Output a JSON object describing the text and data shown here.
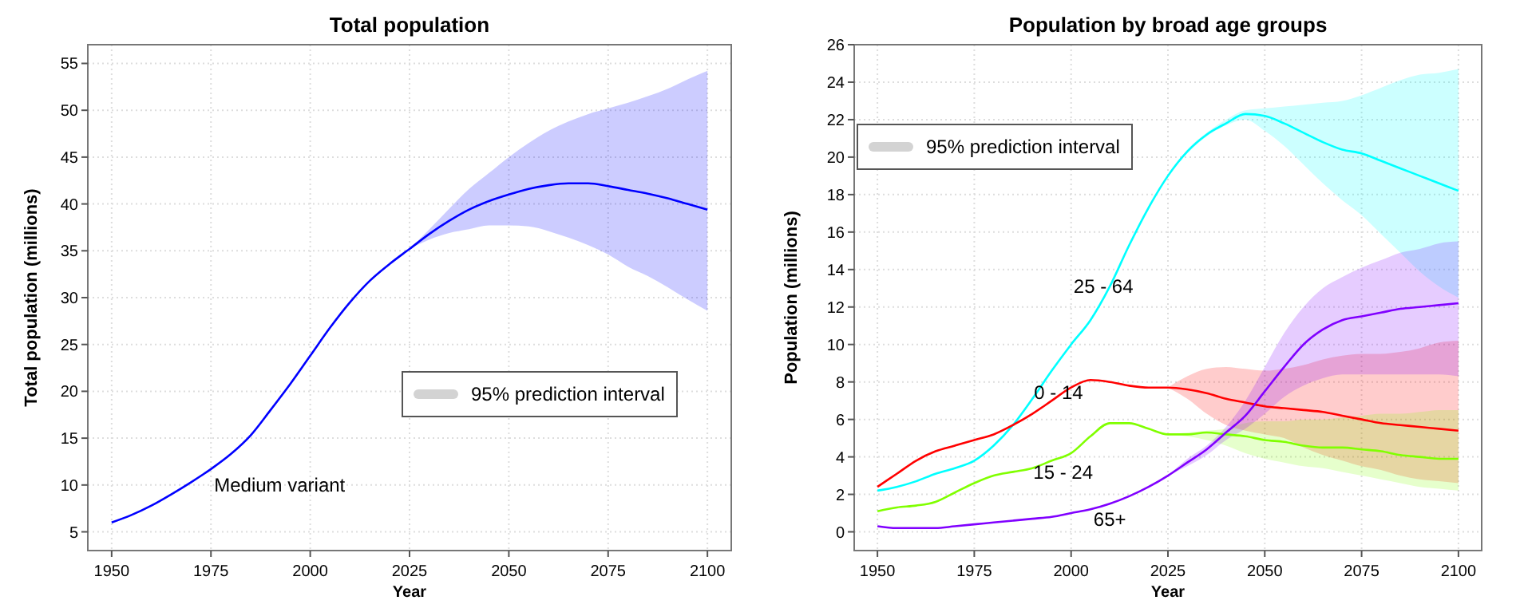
{
  "chart_data": [
    {
      "type": "line",
      "title": "Total population",
      "xlabel": "Year",
      "ylabel": "Total population (millions)",
      "annotations": [
        "95% prediction interval"
      ],
      "grid": true,
      "x": [
        1950,
        1955,
        1960,
        1965,
        1970,
        1975,
        1980,
        1985,
        1990,
        1995,
        2000,
        2005,
        2010,
        2015,
        2020,
        2025,
        2030,
        2035,
        2040,
        2045,
        2050,
        2055,
        2060,
        2065,
        2070,
        2075,
        2080,
        2085,
        2090,
        2095,
        2100
      ],
      "xlim": [
        1944,
        2106
      ],
      "xticks": [
        1950,
        1975,
        2000,
        2025,
        2050,
        2075,
        2100
      ],
      "ylim": [
        3,
        57
      ],
      "yticks": [
        5,
        10,
        15,
        20,
        25,
        30,
        35,
        40,
        45,
        50,
        55
      ],
      "series": [
        {
          "name": "Medium variant",
          "color": "#0000ff",
          "values": [
            6,
            6.8,
            7.8,
            9,
            10.3,
            11.7,
            13.3,
            15.3,
            18,
            20.8,
            23.8,
            26.8,
            29.5,
            31.8,
            33.6,
            35.2,
            36.8,
            38.2,
            39.4,
            40.3,
            41,
            41.6,
            42,
            42.2,
            42.2,
            41.9,
            41.5,
            41.1,
            40.6,
            40,
            39.4
          ],
          "upper": [
            null,
            null,
            null,
            null,
            null,
            null,
            null,
            null,
            null,
            null,
            null,
            null,
            null,
            null,
            null,
            35.2,
            37.3,
            39.5,
            41.6,
            43.3,
            45,
            46.5,
            47.8,
            48.8,
            49.6,
            50.2,
            50.8,
            51.5,
            52.3,
            53.3,
            54.2
          ],
          "lower": [
            null,
            null,
            null,
            null,
            null,
            null,
            null,
            null,
            null,
            null,
            null,
            null,
            null,
            null,
            null,
            35.2,
            36.2,
            36.9,
            37.3,
            37.7,
            37.7,
            37.6,
            37.1,
            36.4,
            35.6,
            34.6,
            33.3,
            32.3,
            31.1,
            29.8,
            28.6
          ]
        }
      ]
    },
    {
      "type": "line",
      "title": "Population by broad age groups",
      "xlabel": "Year",
      "ylabel": "Population (millions)",
      "annotations": [
        "95% prediction interval"
      ],
      "grid": true,
      "x": [
        1950,
        1955,
        1960,
        1965,
        1970,
        1975,
        1980,
        1985,
        1990,
        1995,
        2000,
        2005,
        2010,
        2015,
        2020,
        2025,
        2030,
        2035,
        2040,
        2045,
        2050,
        2055,
        2060,
        2065,
        2070,
        2075,
        2080,
        2085,
        2090,
        2095,
        2100
      ],
      "xlim": [
        1944,
        2106
      ],
      "xticks": [
        1950,
        1975,
        2000,
        2025,
        2050,
        2075,
        2100
      ],
      "ylim": [
        -1,
        26
      ],
      "yticks": [
        0,
        2,
        4,
        6,
        8,
        10,
        12,
        14,
        16,
        18,
        20,
        22,
        24,
        26
      ],
      "series": [
        {
          "name": "25 - 64",
          "color": "#00ffff",
          "values": [
            2.2,
            2.4,
            2.7,
            3.1,
            3.4,
            3.8,
            4.6,
            5.7,
            7.1,
            8.6,
            10,
            11.3,
            13.1,
            15.3,
            17.3,
            19,
            20.3,
            21.2,
            21.8,
            22.3,
            22.2,
            21.8,
            21.3,
            20.8,
            20.4,
            20.2,
            19.8,
            19.4,
            19,
            18.6,
            18.2
          ],
          "upper": [
            null,
            null,
            null,
            null,
            null,
            null,
            null,
            null,
            null,
            null,
            null,
            null,
            null,
            null,
            null,
            19,
            20.4,
            21.3,
            22,
            22.5,
            22.6,
            22.7,
            22.8,
            22.9,
            23,
            23.3,
            23.7,
            24.1,
            24.4,
            24.5,
            24.7
          ],
          "lower": [
            null,
            null,
            null,
            null,
            null,
            null,
            null,
            null,
            null,
            null,
            null,
            null,
            null,
            null,
            null,
            19,
            20.2,
            21.1,
            21.7,
            22,
            21.4,
            20.6,
            19.6,
            18.6,
            17.7,
            16.9,
            15.9,
            14.9,
            13.9,
            13.1,
            12.5
          ]
        },
        {
          "name": "0 - 14",
          "color": "#ff0000",
          "values": [
            2.4,
            3.1,
            3.8,
            4.3,
            4.6,
            4.9,
            5.2,
            5.7,
            6.3,
            7,
            7.7,
            8.1,
            8,
            7.8,
            7.7,
            7.7,
            7.6,
            7.4,
            7.1,
            6.9,
            6.7,
            6.6,
            6.5,
            6.4,
            6.2,
            6,
            5.8,
            5.7,
            5.6,
            5.5,
            5.4
          ],
          "upper": [
            null,
            null,
            null,
            null,
            null,
            null,
            null,
            null,
            null,
            null,
            null,
            null,
            null,
            null,
            null,
            7.7,
            8.3,
            8.7,
            8.8,
            8.7,
            8.6,
            8.7,
            8.9,
            9.2,
            9.4,
            9.5,
            9.5,
            9.6,
            9.8,
            10.1,
            10.2
          ],
          "lower": [
            null,
            null,
            null,
            null,
            null,
            null,
            null,
            null,
            null,
            null,
            null,
            null,
            null,
            null,
            null,
            7.7,
            7.1,
            6.3,
            5.7,
            5.4,
            5.2,
            5,
            4.5,
            4.1,
            3.8,
            3.5,
            3.3,
            3,
            2.8,
            2.7,
            2.6
          ]
        },
        {
          "name": "15 - 24",
          "color": "#80ff00",
          "values": [
            1.1,
            1.3,
            1.4,
            1.6,
            2.1,
            2.6,
            3,
            3.2,
            3.4,
            3.8,
            4.2,
            5.1,
            5.8,
            5.8,
            5.5,
            5.2,
            5.2,
            5.3,
            5.2,
            5.1,
            4.9,
            4.8,
            4.6,
            4.5,
            4.5,
            4.4,
            4.3,
            4.1,
            4,
            3.9,
            3.9
          ],
          "upper": [
            null,
            null,
            null,
            null,
            null,
            null,
            null,
            null,
            null,
            null,
            null,
            null,
            null,
            null,
            null,
            5.2,
            5.3,
            5.4,
            5.5,
            5.8,
            5.9,
            5.9,
            6,
            6,
            6.1,
            6.2,
            6.3,
            6.3,
            6.4,
            6.5,
            6.5
          ],
          "lower": [
            null,
            null,
            null,
            null,
            null,
            null,
            null,
            null,
            null,
            null,
            null,
            null,
            null,
            null,
            null,
            5.2,
            5.1,
            4.9,
            4.6,
            4.2,
            3.9,
            3.7,
            3.5,
            3.4,
            3.2,
            3,
            2.8,
            2.6,
            2.4,
            2.3,
            2.2
          ]
        },
        {
          "name": "65+",
          "color": "#8000ff",
          "values": [
            0.3,
            0.2,
            0.2,
            0.2,
            0.3,
            0.4,
            0.5,
            0.6,
            0.7,
            0.8,
            1,
            1.2,
            1.5,
            1.9,
            2.4,
            3,
            3.7,
            4.4,
            5.3,
            6.2,
            7.5,
            8.8,
            10,
            10.8,
            11.3,
            11.5,
            11.7,
            11.9,
            12,
            12.1,
            12.2
          ],
          "upper": [
            null,
            null,
            null,
            null,
            null,
            null,
            null,
            null,
            null,
            null,
            null,
            null,
            null,
            null,
            null,
            3,
            3.9,
            4.6,
            5.6,
            7,
            8.8,
            10.6,
            12,
            13,
            13.6,
            14.1,
            14.5,
            14.9,
            15.1,
            15.4,
            15.5
          ],
          "lower": [
            null,
            null,
            null,
            null,
            null,
            null,
            null,
            null,
            null,
            null,
            null,
            null,
            null,
            null,
            null,
            3,
            3.5,
            4.1,
            4.9,
            5.5,
            6.3,
            7.2,
            7.8,
            8.2,
            8.4,
            8.4,
            8.4,
            8.4,
            8.4,
            8.4,
            8.3
          ]
        }
      ]
    }
  ]
}
